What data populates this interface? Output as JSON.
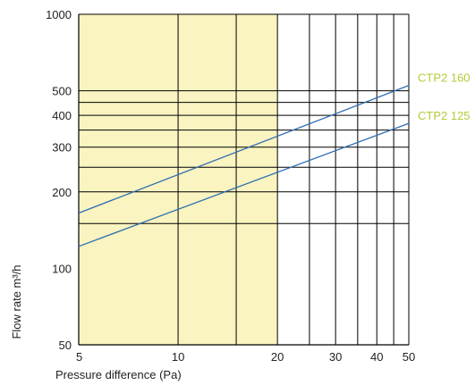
{
  "chart_data": {
    "type": "line",
    "xlabel": "Pressure difference (Pa)",
    "ylabel": "Flow rate m³/h",
    "x_scale": "log",
    "y_scale": "log",
    "xlim": [
      5,
      50
    ],
    "ylim": [
      50,
      1000
    ],
    "x_ticks": [
      5,
      10,
      20,
      30,
      40,
      50
    ],
    "x_tick_labels": [
      "5",
      "10",
      "20",
      "30",
      "40",
      "50"
    ],
    "y_ticks": [
      50,
      100,
      200,
      300,
      400,
      500,
      1000
    ],
    "y_tick_labels": [
      "50",
      "100",
      "200",
      "300",
      "400",
      "500",
      "1000"
    ],
    "x_gridlines": [
      10,
      15,
      20,
      25,
      30,
      35,
      40,
      45
    ],
    "y_gridlines": [
      150,
      200,
      250,
      300,
      350,
      400,
      450,
      500
    ],
    "highlight_region": {
      "x_from": 5,
      "x_to": 20,
      "color": "#f9f4c0"
    },
    "grid": true,
    "series": [
      {
        "name": "CTP2 160",
        "x": [
          5,
          50
        ],
        "y": [
          165,
          525
        ],
        "color": "#2f6db3"
      },
      {
        "name": "CTP2 125",
        "x": [
          5,
          50
        ],
        "y": [
          122,
          372
        ],
        "color": "#2f6db3"
      }
    ],
    "series_label_color": "#b7c93a",
    "axis_color": "#000000",
    "grid_color": "#000000"
  }
}
